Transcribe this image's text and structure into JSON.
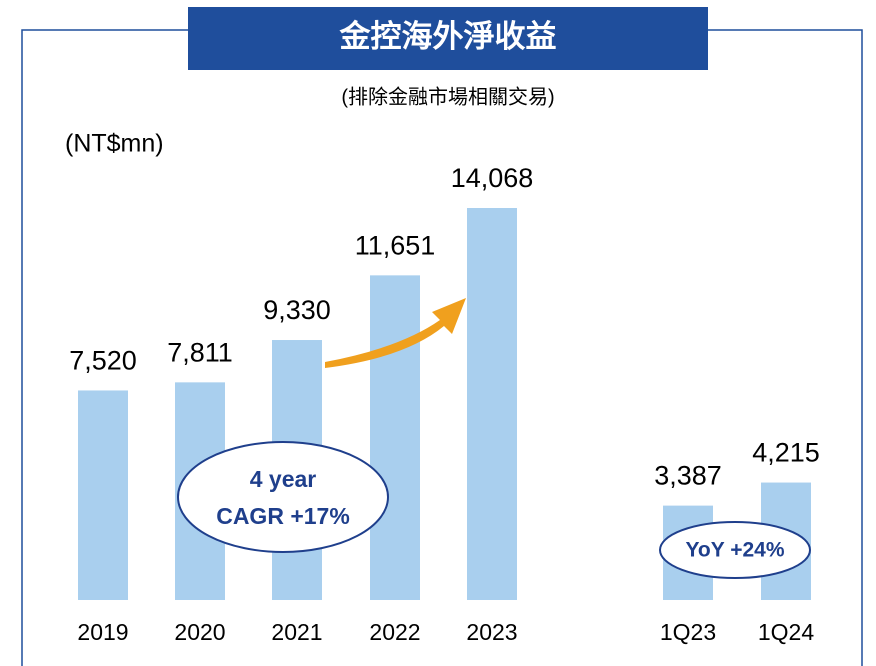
{
  "chart_data": {
    "type": "bar",
    "title": "金控海外淨收益",
    "subtitle": "(排除金融市場相關交易)",
    "unit_label": "(NT$mn)",
    "categories": [
      "2019",
      "2020",
      "2021",
      "2022",
      "2023",
      "1Q23",
      "1Q24"
    ],
    "values": [
      7520,
      7811,
      9330,
      11651,
      14068,
      3387,
      4215
    ],
    "value_labels": [
      "7,520",
      "7,811",
      "9,330",
      "11,651",
      "14,068",
      "3,387",
      "4,215"
    ],
    "color": "#a9cfee",
    "annotations": [
      [
        "4 year",
        "CAGR +17%"
      ],
      [
        "YoY +24%"
      ]
    ]
  }
}
